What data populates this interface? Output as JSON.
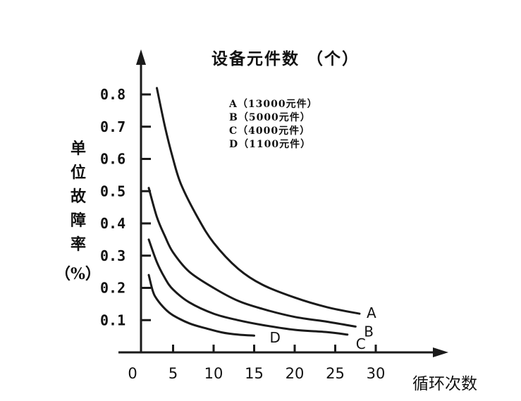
{
  "chart_data": {
    "type": "line",
    "title": "设备元件数 （个）",
    "xlabel": "循环次数",
    "ylabel": "单位故障率",
    "yunit": "（%）",
    "xlim": [
      0,
      32
    ],
    "ylim": [
      0,
      0.9
    ],
    "x_ticks": [
      "0",
      "5",
      "10",
      "15",
      "20",
      "25",
      "30"
    ],
    "y_ticks": [
      "0.1",
      "0.2",
      "0.3",
      "0.4",
      "0.5",
      "0.6",
      "0.7",
      "0.8"
    ],
    "legend": [
      "A（13000元件）",
      "B（5000元件）",
      "C（4000元件）",
      "D（1100元件）"
    ],
    "grid": false,
    "series": [
      {
        "name": "A",
        "x": [
          3,
          4,
          5,
          6,
          8,
          10,
          13,
          16,
          20,
          24,
          28
        ],
        "y": [
          0.82,
          0.7,
          0.6,
          0.52,
          0.42,
          0.34,
          0.26,
          0.21,
          0.17,
          0.14,
          0.12
        ]
      },
      {
        "name": "B",
        "x": [
          2,
          3,
          4,
          5,
          7,
          10,
          13,
          16,
          20,
          24,
          27.5
        ],
        "y": [
          0.51,
          0.42,
          0.36,
          0.31,
          0.25,
          0.2,
          0.16,
          0.135,
          0.11,
          0.095,
          0.08
        ]
      },
      {
        "name": "C",
        "x": [
          2,
          3,
          4,
          5,
          7,
          10,
          13,
          16,
          20,
          24,
          26.5
        ],
        "y": [
          0.35,
          0.28,
          0.23,
          0.195,
          0.155,
          0.12,
          0.1,
          0.085,
          0.07,
          0.063,
          0.055
        ]
      },
      {
        "name": "D",
        "x": [
          2,
          2.5,
          3,
          4,
          5,
          7,
          9,
          11,
          13,
          15
        ],
        "y": [
          0.24,
          0.19,
          0.165,
          0.135,
          0.115,
          0.09,
          0.075,
          0.062,
          0.055,
          0.052
        ]
      }
    ],
    "color": "#1a1a1a"
  }
}
